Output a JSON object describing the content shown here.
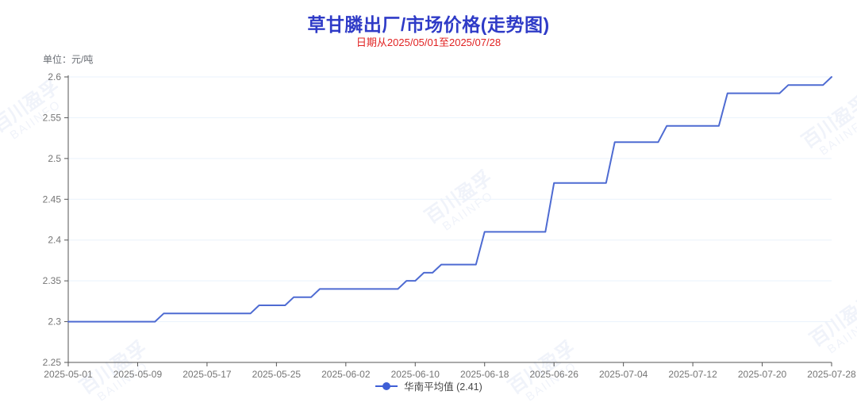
{
  "header": {
    "title": "草甘膦出厂/市场价格(走势图)",
    "subtitle": "日期从2025/05/01至2025/07/28",
    "title_color": "#2f3bc7",
    "subtitle_color": "#e12222"
  },
  "unit_label": "单位：元/吨",
  "legend": {
    "label": "华南平均值 (2.41)"
  },
  "watermark": {
    "line1": "百川盈孚",
    "line2": "BAIINFO"
  },
  "chart_data": {
    "type": "line",
    "title": "草甘膦出厂/市场价格(走势图)",
    "subtitle": "日期从2025/05/01至2025/07/28",
    "ylabel": "元/吨",
    "series_name": "华南平均值",
    "series_average_shown": "2.41",
    "start_date": "2025-05-01",
    "end_date": "2025-07-28",
    "ylim": [
      2.25,
      2.6
    ],
    "grid": true,
    "legend_position": "bottom",
    "y_tick_labels": [
      "2.25",
      "2.3",
      "2.35",
      "2.4",
      "2.45",
      "2.5",
      "2.55",
      "2.6"
    ],
    "x_tick_labels": [
      "2025-05-01",
      "2025-05-09",
      "2025-05-17",
      "2025-05-25",
      "2025-06-02",
      "2025-06-10",
      "2025-06-18",
      "2025-06-26",
      "2025-07-04",
      "2025-07-12",
      "2025-07-20",
      "2025-07-28"
    ],
    "x_tick_interval_days": 8,
    "colors": {
      "line": "#4e6bd2",
      "legend_marker": "#3f5fd6",
      "grid": "#e9f2fc",
      "axis": "#555555"
    },
    "segments": [
      {
        "value": 2.3,
        "from": "2025-05-01",
        "to": "2025-05-11"
      },
      {
        "value": 2.31,
        "from": "2025-05-12",
        "to": "2025-05-22"
      },
      {
        "value": 2.32,
        "from": "2025-05-23",
        "to": "2025-05-26"
      },
      {
        "value": 2.33,
        "from": "2025-05-27",
        "to": "2025-05-29"
      },
      {
        "value": 2.34,
        "from": "2025-05-30",
        "to": "2025-06-08"
      },
      {
        "value": 2.35,
        "from": "2025-06-09",
        "to": "2025-06-10"
      },
      {
        "value": 2.36,
        "from": "2025-06-11",
        "to": "2025-06-12"
      },
      {
        "value": 2.37,
        "from": "2025-06-13",
        "to": "2025-06-17"
      },
      {
        "value": 2.41,
        "from": "2025-06-18",
        "to": "2025-06-25"
      },
      {
        "value": 2.47,
        "from": "2025-06-26",
        "to": "2025-07-02"
      },
      {
        "value": 2.52,
        "from": "2025-07-03",
        "to": "2025-07-08"
      },
      {
        "value": 2.54,
        "from": "2025-07-09",
        "to": "2025-07-15"
      },
      {
        "value": 2.58,
        "from": "2025-07-16",
        "to": "2025-07-22"
      },
      {
        "value": 2.59,
        "from": "2025-07-23",
        "to": "2025-07-27"
      },
      {
        "value": 2.6,
        "from": "2025-07-28",
        "to": "2025-07-28"
      }
    ],
    "daily_values": [
      2.3,
      2.3,
      2.3,
      2.3,
      2.3,
      2.3,
      2.3,
      2.3,
      2.3,
      2.3,
      2.3,
      2.31,
      2.31,
      2.31,
      2.31,
      2.31,
      2.31,
      2.31,
      2.31,
      2.31,
      2.31,
      2.31,
      2.32,
      2.32,
      2.32,
      2.32,
      2.33,
      2.33,
      2.33,
      2.34,
      2.34,
      2.34,
      2.34,
      2.34,
      2.34,
      2.34,
      2.34,
      2.34,
      2.34,
      2.35,
      2.35,
      2.36,
      2.36,
      2.37,
      2.37,
      2.37,
      2.37,
      2.37,
      2.41,
      2.41,
      2.41,
      2.41,
      2.41,
      2.41,
      2.41,
      2.41,
      2.47,
      2.47,
      2.47,
      2.47,
      2.47,
      2.47,
      2.47,
      2.52,
      2.52,
      2.52,
      2.52,
      2.52,
      2.52,
      2.54,
      2.54,
      2.54,
      2.54,
      2.54,
      2.54,
      2.54,
      2.58,
      2.58,
      2.58,
      2.58,
      2.58,
      2.58,
      2.58,
      2.59,
      2.59,
      2.59,
      2.59,
      2.59,
      2.6
    ]
  }
}
